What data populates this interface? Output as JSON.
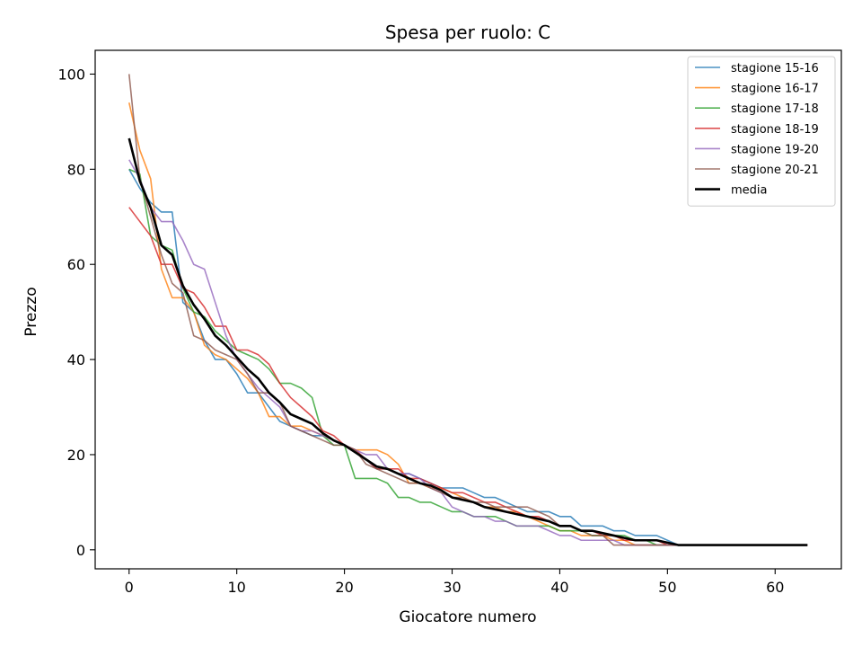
{
  "chart_data": {
    "type": "line",
    "title": "Spesa per ruolo: C",
    "xlabel": "Giocatore numero",
    "ylabel": "Prezzo",
    "xlim": [
      -3.15,
      66.15
    ],
    "ylim": [
      -4,
      105
    ],
    "xticks": [
      0,
      10,
      20,
      30,
      40,
      50,
      60
    ],
    "yticks": [
      0,
      20,
      40,
      60,
      80,
      100
    ],
    "legend_position": "top-right",
    "grid": false,
    "series": [
      {
        "name": "stagione 15-16",
        "color": "#1f77b4",
        "x": [
          0,
          1,
          2,
          3,
          4,
          5,
          6,
          7,
          8,
          9,
          10,
          11,
          12,
          13,
          14,
          15,
          16,
          17,
          18,
          19,
          20,
          21,
          22,
          23,
          24,
          25,
          26,
          27,
          28,
          29,
          30,
          31,
          32,
          33,
          34,
          35,
          36,
          37,
          38,
          39,
          40,
          41,
          42,
          43,
          44,
          45,
          46,
          47,
          48,
          49,
          50,
          51,
          52,
          53,
          54,
          55,
          56,
          57,
          58,
          59,
          60,
          61,
          62,
          63
        ],
        "y": [
          80,
          76,
          73,
          71,
          71,
          52,
          50,
          44,
          40,
          40,
          37,
          33,
          33,
          30,
          27,
          26,
          25,
          24,
          24,
          23,
          22,
          21,
          19,
          17,
          17,
          16,
          16,
          15,
          14,
          13,
          13,
          13,
          12,
          11,
          11,
          10,
          9,
          8,
          8,
          8,
          7,
          7,
          5,
          5,
          5,
          4,
          4,
          3,
          3,
          3,
          2,
          1,
          1,
          1,
          1,
          1,
          1,
          1,
          1,
          1,
          1,
          1,
          1,
          1
        ]
      },
      {
        "name": "stagione 16-17",
        "color": "#ff7f0e",
        "x": [
          0,
          1,
          2,
          3,
          4,
          5,
          6,
          7,
          8,
          9,
          10,
          11,
          12,
          13,
          14,
          15,
          16,
          17,
          18,
          19,
          20,
          21,
          22,
          23,
          24,
          25,
          26,
          27,
          28,
          29,
          30,
          31,
          32,
          33,
          34,
          35,
          36,
          37,
          38,
          39,
          40,
          41,
          42,
          43,
          44,
          45,
          46,
          47,
          48,
          49,
          50,
          51,
          52,
          53,
          54,
          55,
          56,
          57,
          58,
          59,
          60,
          61,
          62,
          63
        ],
        "y": [
          94,
          84,
          78,
          59,
          53,
          53,
          50,
          43,
          41,
          40,
          38,
          36,
          33,
          28,
          28,
          26,
          26,
          25,
          24,
          23,
          22,
          21,
          21,
          21,
          20,
          18,
          14,
          14,
          13,
          13,
          12,
          11,
          10,
          9,
          9,
          8,
          8,
          7,
          6,
          5,
          4,
          4,
          3,
          3,
          3,
          2,
          2,
          1,
          1,
          1,
          1,
          1,
          1,
          1,
          1,
          1,
          1,
          1,
          1,
          1,
          1,
          1,
          1,
          1
        ]
      },
      {
        "name": "stagione 17-18",
        "color": "#2ca02c",
        "x": [
          0,
          1,
          2,
          3,
          4,
          5,
          6,
          7,
          8,
          9,
          10,
          11,
          12,
          13,
          14,
          15,
          16,
          17,
          18,
          19,
          20,
          21,
          22,
          23,
          24,
          25,
          26,
          27,
          28,
          29,
          30,
          31,
          32,
          33,
          34,
          35,
          36,
          37,
          38,
          39,
          40,
          41,
          42,
          43,
          44,
          45,
          46,
          47,
          48,
          49,
          50,
          51,
          52,
          53,
          54,
          55,
          56,
          57,
          58,
          59,
          60,
          61,
          62,
          63
        ],
        "y": [
          80,
          79,
          66,
          64,
          63,
          55,
          50,
          49,
          46,
          44,
          42,
          41,
          40,
          38,
          35,
          35,
          34,
          32,
          24,
          22,
          22,
          15,
          15,
          15,
          14,
          11,
          11,
          10,
          10,
          9,
          8,
          8,
          7,
          7,
          7,
          6,
          5,
          5,
          5,
          5,
          4,
          4,
          4,
          3,
          3,
          3,
          3,
          2,
          2,
          1,
          1,
          1,
          1,
          1,
          1,
          1,
          1,
          1,
          1,
          1,
          1,
          1,
          1,
          1
        ]
      },
      {
        "name": "stagione 18-19",
        "color": "#d62728",
        "x": [
          0,
          1,
          2,
          3,
          4,
          5,
          6,
          7,
          8,
          9,
          10,
          11,
          12,
          13,
          14,
          15,
          16,
          17,
          18,
          19,
          20,
          21,
          22,
          23,
          24,
          25,
          26,
          27,
          28,
          29,
          30,
          31,
          32,
          33,
          34,
          35,
          36,
          37,
          38,
          39,
          40,
          41,
          42,
          43,
          44,
          45,
          46,
          47,
          48,
          49,
          50,
          51,
          52,
          53,
          54,
          55,
          56,
          57,
          58,
          59,
          60,
          61,
          62,
          63
        ],
        "y": [
          72,
          69,
          66,
          60,
          60,
          55,
          54,
          51,
          47,
          47,
          42,
          42,
          41,
          39,
          35,
          32,
          30,
          28,
          25,
          24,
          22,
          21,
          19,
          17,
          17,
          17,
          15,
          15,
          14,
          13,
          12,
          12,
          11,
          10,
          10,
          9,
          8,
          7,
          7,
          6,
          5,
          5,
          4,
          4,
          3,
          3,
          2,
          2,
          2,
          2,
          1,
          1,
          1,
          1,
          1,
          1,
          1,
          1,
          1,
          1,
          1,
          1,
          1,
          1
        ]
      },
      {
        "name": "stagione 19-20",
        "color": "#9467bd",
        "x": [
          0,
          1,
          2,
          3,
          4,
          5,
          6,
          7,
          8,
          9,
          10,
          11,
          12,
          13,
          14,
          15,
          16,
          17,
          18,
          19,
          20,
          21,
          22,
          23,
          24,
          25,
          26,
          27,
          28,
          29,
          30,
          31,
          32,
          33,
          34,
          35,
          36,
          37,
          38,
          39,
          40,
          41,
          42,
          43,
          44,
          45,
          46,
          47,
          48,
          49,
          50,
          51,
          52,
          53,
          54,
          55,
          56,
          57,
          58,
          59,
          60,
          61,
          62,
          63
        ],
        "y": [
          82,
          78,
          72,
          69,
          69,
          65,
          60,
          59,
          52,
          45,
          40,
          37,
          34,
          32,
          30,
          26,
          25,
          25,
          24,
          23,
          22,
          21,
          20,
          20,
          17,
          16,
          16,
          15,
          13,
          12,
          9,
          8,
          7,
          7,
          6,
          6,
          5,
          5,
          5,
          4,
          3,
          3,
          2,
          2,
          2,
          2,
          1,
          1,
          1,
          1,
          1,
          1,
          1,
          1,
          1,
          1,
          1,
          1,
          1,
          1,
          1,
          1,
          1,
          1
        ]
      },
      {
        "name": "stagione 20-21",
        "color": "#8c564b",
        "x": [
          0,
          1,
          2,
          3,
          4,
          5,
          6,
          7,
          8,
          9,
          10,
          11,
          12,
          13,
          14,
          15,
          16,
          17,
          18,
          19,
          20,
          21,
          22,
          23,
          24,
          25,
          26,
          27,
          28,
          29,
          30,
          31,
          32,
          33,
          34,
          35,
          36,
          37,
          38,
          39,
          40,
          41,
          42,
          43,
          44,
          45,
          46,
          47,
          48,
          49,
          50,
          51,
          52,
          53,
          54,
          55,
          56,
          57,
          58,
          59,
          60,
          61,
          62,
          63
        ],
        "y": [
          100,
          78,
          70,
          62,
          56,
          54,
          45,
          44,
          42,
          41,
          40,
          37,
          33,
          33,
          31,
          26,
          25,
          24,
          23,
          22,
          22,
          21,
          18,
          17,
          16,
          15,
          14,
          14,
          13,
          12,
          11,
          11,
          10,
          10,
          9,
          9,
          9,
          9,
          8,
          7,
          5,
          5,
          4,
          3,
          3,
          1,
          1,
          1,
          1,
          1,
          1,
          1,
          1,
          1,
          1,
          1,
          1,
          1,
          1,
          1,
          1,
          1,
          1,
          1
        ]
      },
      {
        "name": "media",
        "color": "#000000",
        "x": [
          0,
          1,
          2,
          3,
          4,
          5,
          6,
          7,
          8,
          9,
          10,
          11,
          12,
          13,
          14,
          15,
          16,
          17,
          18,
          19,
          20,
          21,
          22,
          23,
          24,
          25,
          26,
          27,
          28,
          29,
          30,
          31,
          32,
          33,
          34,
          35,
          36,
          37,
          38,
          39,
          40,
          41,
          42,
          43,
          44,
          45,
          46,
          47,
          48,
          49,
          50,
          51,
          52,
          53,
          54,
          55,
          56,
          57,
          58,
          59,
          60,
          61,
          62,
          63
        ],
        "y": [
          86.5,
          77.5,
          72,
          64,
          62,
          55.5,
          51.5,
          48.5,
          45,
          43,
          40.5,
          38,
          36,
          33,
          31,
          28.5,
          27.5,
          26.5,
          24.5,
          23,
          22,
          20.5,
          19,
          17.5,
          17,
          16,
          15,
          14,
          13.5,
          12.5,
          11,
          10.5,
          10,
          9,
          8.5,
          8,
          7.5,
          7,
          6.5,
          6,
          5,
          5,
          4,
          4,
          3.5,
          3,
          2.5,
          2,
          2,
          2,
          1.5,
          1,
          1,
          1,
          1,
          1,
          1,
          1,
          1,
          1,
          1,
          1,
          1,
          1
        ]
      }
    ]
  }
}
